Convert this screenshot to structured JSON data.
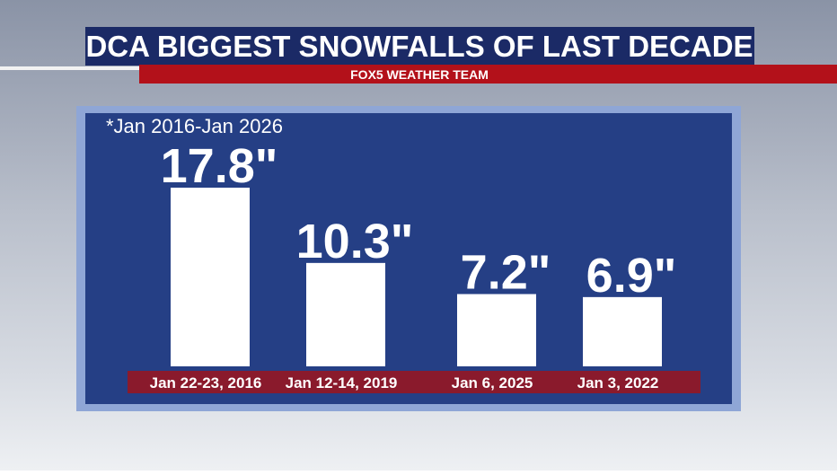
{
  "chart_data": {
    "type": "bar",
    "title": "DCA BIGGEST SNOWFALLS OF LAST DECADE",
    "brand": "FOX5 WEATHER TEAM",
    "subtitle": "*Jan 2016-Jan 2026",
    "categories": [
      "Jan 22-23, 2016",
      "Jan 12-14, 2019",
      "Jan 6, 2025",
      "Jan 3, 2022"
    ],
    "values": [
      17.8,
      10.3,
      7.2,
      6.9
    ],
    "value_labels": [
      "17.8\"",
      "10.3\"",
      "7.2\"",
      "6.9\""
    ],
    "color": "#ffffff"
  }
}
